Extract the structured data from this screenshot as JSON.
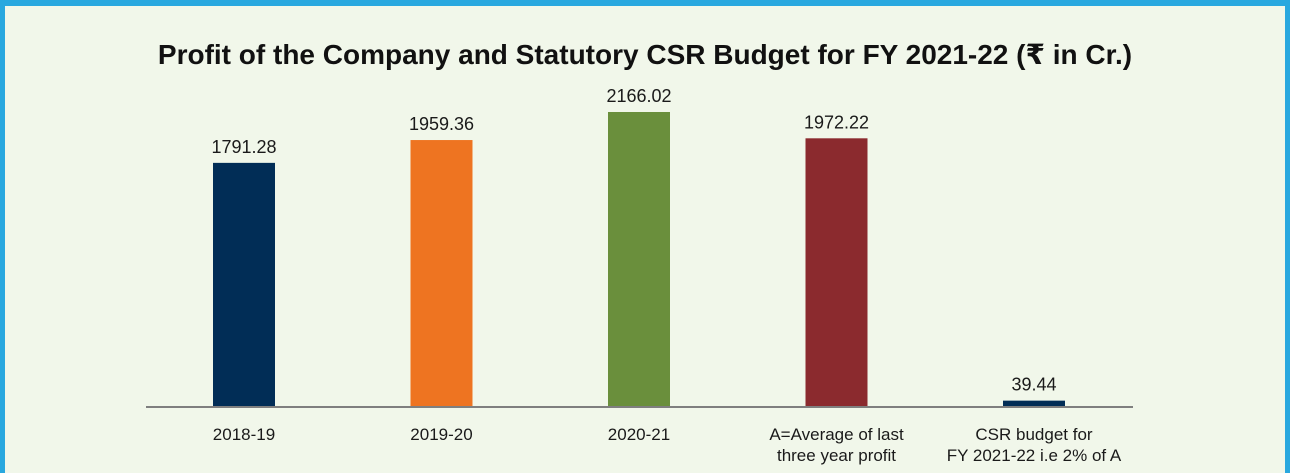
{
  "chart_data": {
    "type": "bar",
    "title": "Profit of the Company and Statutory CSR Budget for FY 2021-22 (₹ in Cr.)",
    "categories": [
      [
        "2018-19"
      ],
      [
        "2019-20"
      ],
      [
        "2020-21"
      ],
      [
        "A=Average of last",
        "three year profit"
      ],
      [
        "CSR budget for",
        "FY 2021-22 i.e 2% of A"
      ]
    ],
    "values": [
      1791.28,
      1959.36,
      2166.02,
      1972.22,
      39.44
    ],
    "value_labels": [
      "1791.28",
      "1959.36",
      "2166.02",
      "1972.22",
      "39.44"
    ],
    "colors": [
      "#012d56",
      "#ee7421",
      "#6a8f3c",
      "#8b2a2e",
      "#012d56"
    ],
    "ylim": [
      0,
      2166.02
    ],
    "grid": false,
    "legend": "none"
  }
}
